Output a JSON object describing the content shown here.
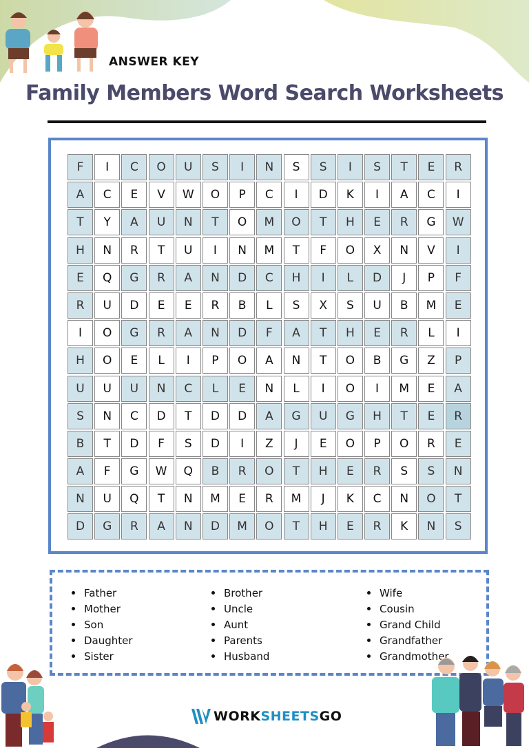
{
  "header": {
    "answer_key": "ANSWER KEY",
    "title": "Family Members Word Search Worksheets"
  },
  "colors": {
    "frame": "#5b86c8",
    "highlight": "#d1e3ea",
    "title": "#4b4a6b",
    "brand_blue": "#1f8fc2"
  },
  "grid": {
    "rows": [
      "FICOUSINSSISTER",
      "ACEVWOPCIDKIACI",
      "TYAUNTOMOTHERGW",
      "HNRTUINMTFOXNVI",
      "EQGRANDCHILDJPF",
      "RUDEERBLSXSUBME",
      "IOGRANDFATHERLI",
      "HOELIPOANTOBGZP",
      "UUUNCLENLIOIMEA",
      "SNCDTDDAGUGHTER",
      "BTDFSDIZJEOPORE",
      "AFGWQBROTHERSSN",
      "NUQTNMERMJKCNOT",
      "DGRANDMOTHERKNS"
    ],
    "highlighted": [
      "101111110111111",
      "100000000000000",
      "101111011111101",
      "100000000000001",
      "101111111111001",
      "100000000000001",
      "001111111111100",
      "100000000000001",
      "101111100000001",
      "100000011111112",
      "100000000000001",
      "100001111111011",
      "100000000000011",
      "111111111111011"
    ]
  },
  "word_list": {
    "columns": [
      [
        "Father",
        "Mother",
        "Son",
        "Daughter",
        "Sister"
      ],
      [
        "Brother",
        "Uncle",
        "Aunt",
        "Parents",
        "Husband"
      ],
      [
        "Wife",
        "Cousin",
        "Grand Child",
        "Grandfather",
        "Grandmother"
      ]
    ]
  },
  "footer": {
    "logo_part1": "WORK",
    "logo_part2": "SHEETS",
    "logo_part3": "GO"
  },
  "icons": [
    "family-illustration-top",
    "family-illustration-bottom-left",
    "family-illustration-bottom-right",
    "worksheetsgo-logo-icon"
  ]
}
